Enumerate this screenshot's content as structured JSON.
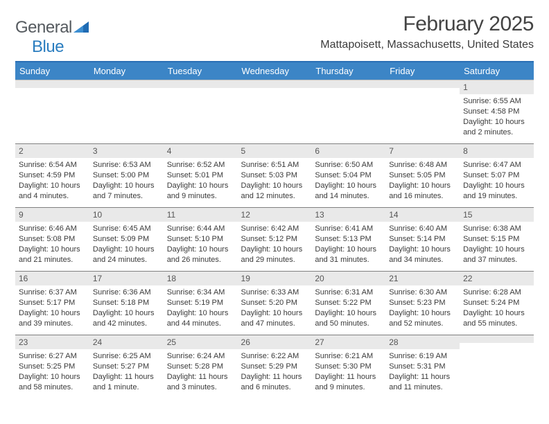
{
  "logo": {
    "text1": "General",
    "text2": "Blue"
  },
  "title": "February 2025",
  "location": "Mattapoisett, Massachusetts, United States",
  "colors": {
    "header_bg": "#3c85c6",
    "header_border": "#2a6fb5",
    "daynum_bg": "#e9e9e9",
    "logo_gray": "#555a5f",
    "logo_blue": "#2a7dbf"
  },
  "day_headers": [
    "Sunday",
    "Monday",
    "Tuesday",
    "Wednesday",
    "Thursday",
    "Friday",
    "Saturday"
  ],
  "weeks": [
    [
      {
        "num": "",
        "lines": []
      },
      {
        "num": "",
        "lines": []
      },
      {
        "num": "",
        "lines": []
      },
      {
        "num": "",
        "lines": []
      },
      {
        "num": "",
        "lines": []
      },
      {
        "num": "",
        "lines": []
      },
      {
        "num": "1",
        "lines": [
          "Sunrise: 6:55 AM",
          "Sunset: 4:58 PM",
          "Daylight: 10 hours and 2 minutes."
        ]
      }
    ],
    [
      {
        "num": "2",
        "lines": [
          "Sunrise: 6:54 AM",
          "Sunset: 4:59 PM",
          "Daylight: 10 hours and 4 minutes."
        ]
      },
      {
        "num": "3",
        "lines": [
          "Sunrise: 6:53 AM",
          "Sunset: 5:00 PM",
          "Daylight: 10 hours and 7 minutes."
        ]
      },
      {
        "num": "4",
        "lines": [
          "Sunrise: 6:52 AM",
          "Sunset: 5:01 PM",
          "Daylight: 10 hours and 9 minutes."
        ]
      },
      {
        "num": "5",
        "lines": [
          "Sunrise: 6:51 AM",
          "Sunset: 5:03 PM",
          "Daylight: 10 hours and 12 minutes."
        ]
      },
      {
        "num": "6",
        "lines": [
          "Sunrise: 6:50 AM",
          "Sunset: 5:04 PM",
          "Daylight: 10 hours and 14 minutes."
        ]
      },
      {
        "num": "7",
        "lines": [
          "Sunrise: 6:48 AM",
          "Sunset: 5:05 PM",
          "Daylight: 10 hours and 16 minutes."
        ]
      },
      {
        "num": "8",
        "lines": [
          "Sunrise: 6:47 AM",
          "Sunset: 5:07 PM",
          "Daylight: 10 hours and 19 minutes."
        ]
      }
    ],
    [
      {
        "num": "9",
        "lines": [
          "Sunrise: 6:46 AM",
          "Sunset: 5:08 PM",
          "Daylight: 10 hours and 21 minutes."
        ]
      },
      {
        "num": "10",
        "lines": [
          "Sunrise: 6:45 AM",
          "Sunset: 5:09 PM",
          "Daylight: 10 hours and 24 minutes."
        ]
      },
      {
        "num": "11",
        "lines": [
          "Sunrise: 6:44 AM",
          "Sunset: 5:10 PM",
          "Daylight: 10 hours and 26 minutes."
        ]
      },
      {
        "num": "12",
        "lines": [
          "Sunrise: 6:42 AM",
          "Sunset: 5:12 PM",
          "Daylight: 10 hours and 29 minutes."
        ]
      },
      {
        "num": "13",
        "lines": [
          "Sunrise: 6:41 AM",
          "Sunset: 5:13 PM",
          "Daylight: 10 hours and 31 minutes."
        ]
      },
      {
        "num": "14",
        "lines": [
          "Sunrise: 6:40 AM",
          "Sunset: 5:14 PM",
          "Daylight: 10 hours and 34 minutes."
        ]
      },
      {
        "num": "15",
        "lines": [
          "Sunrise: 6:38 AM",
          "Sunset: 5:15 PM",
          "Daylight: 10 hours and 37 minutes."
        ]
      }
    ],
    [
      {
        "num": "16",
        "lines": [
          "Sunrise: 6:37 AM",
          "Sunset: 5:17 PM",
          "Daylight: 10 hours and 39 minutes."
        ]
      },
      {
        "num": "17",
        "lines": [
          "Sunrise: 6:36 AM",
          "Sunset: 5:18 PM",
          "Daylight: 10 hours and 42 minutes."
        ]
      },
      {
        "num": "18",
        "lines": [
          "Sunrise: 6:34 AM",
          "Sunset: 5:19 PM",
          "Daylight: 10 hours and 44 minutes."
        ]
      },
      {
        "num": "19",
        "lines": [
          "Sunrise: 6:33 AM",
          "Sunset: 5:20 PM",
          "Daylight: 10 hours and 47 minutes."
        ]
      },
      {
        "num": "20",
        "lines": [
          "Sunrise: 6:31 AM",
          "Sunset: 5:22 PM",
          "Daylight: 10 hours and 50 minutes."
        ]
      },
      {
        "num": "21",
        "lines": [
          "Sunrise: 6:30 AM",
          "Sunset: 5:23 PM",
          "Daylight: 10 hours and 52 minutes."
        ]
      },
      {
        "num": "22",
        "lines": [
          "Sunrise: 6:28 AM",
          "Sunset: 5:24 PM",
          "Daylight: 10 hours and 55 minutes."
        ]
      }
    ],
    [
      {
        "num": "23",
        "lines": [
          "Sunrise: 6:27 AM",
          "Sunset: 5:25 PM",
          "Daylight: 10 hours and 58 minutes."
        ]
      },
      {
        "num": "24",
        "lines": [
          "Sunrise: 6:25 AM",
          "Sunset: 5:27 PM",
          "Daylight: 11 hours and 1 minute."
        ]
      },
      {
        "num": "25",
        "lines": [
          "Sunrise: 6:24 AM",
          "Sunset: 5:28 PM",
          "Daylight: 11 hours and 3 minutes."
        ]
      },
      {
        "num": "26",
        "lines": [
          "Sunrise: 6:22 AM",
          "Sunset: 5:29 PM",
          "Daylight: 11 hours and 6 minutes."
        ]
      },
      {
        "num": "27",
        "lines": [
          "Sunrise: 6:21 AM",
          "Sunset: 5:30 PM",
          "Daylight: 11 hours and 9 minutes."
        ]
      },
      {
        "num": "28",
        "lines": [
          "Sunrise: 6:19 AM",
          "Sunset: 5:31 PM",
          "Daylight: 11 hours and 11 minutes."
        ]
      },
      {
        "num": "",
        "lines": []
      }
    ]
  ]
}
